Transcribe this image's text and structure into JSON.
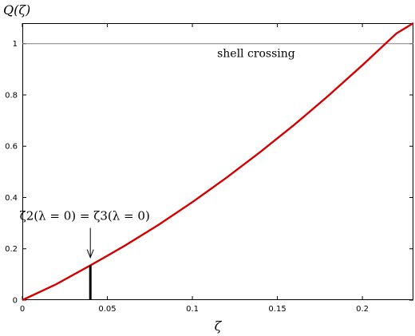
{
  "chart_data": {
    "type": "line",
    "title": "",
    "xlabel": "ζ",
    "ylabel": "Q(ζ)",
    "xlim": [
      0,
      0.23
    ],
    "ylim": [
      0,
      1.08
    ],
    "x_ticks": [
      0,
      0.05,
      0.1,
      0.15,
      0.2
    ],
    "x_tick_labels": [
      "0",
      "0.05",
      "0.1",
      "0.15",
      "0.2"
    ],
    "y_ticks": [
      0,
      0.2,
      0.4,
      0.6,
      0.8,
      1
    ],
    "y_tick_labels": [
      "0",
      "0.2",
      "0.4",
      "0.6",
      "0.8",
      "1"
    ],
    "grid": false,
    "series": [
      {
        "color": "#d40000",
        "x": [
          0,
          0.02,
          0.04,
          0.06,
          0.08,
          0.1,
          0.12,
          0.14,
          0.16,
          0.18,
          0.2,
          0.22,
          0.23
        ],
        "y": [
          0,
          0.062,
          0.135,
          0.211,
          0.293,
          0.382,
          0.477,
          0.578,
          0.684,
          0.797,
          0.916,
          1.04,
          1.08
        ]
      }
    ],
    "reference_line": {
      "y": 1,
      "label": "shell crossing",
      "color": "#808080"
    },
    "marker_bar": {
      "x": 0.04,
      "y_from": 0,
      "y_to": 0.135,
      "color": "#000000"
    },
    "annotation": {
      "text": "ζ2(λ = 0) = ζ3(λ = 0)",
      "arrow_to": {
        "x": 0.04,
        "y": 0.135
      }
    }
  }
}
